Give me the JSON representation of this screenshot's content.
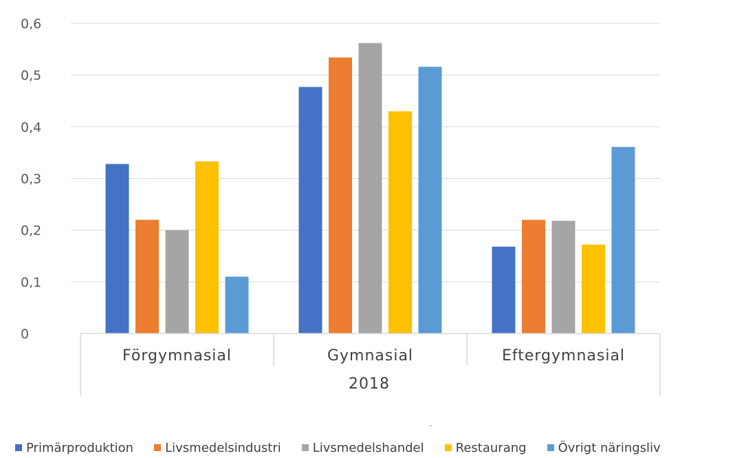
{
  "chart_data": {
    "type": "bar",
    "title": "",
    "xlabel": "2018",
    "ylabel": "",
    "ylim": [
      0,
      0.6
    ],
    "yticks": [
      "0",
      "0,1",
      "0,2",
      "0,3",
      "0,4",
      "0,5",
      "0,6"
    ],
    "grid": true,
    "legend_position": "bottom",
    "categories": [
      "Förgymnasial",
      "Gymnasial",
      "Eftergymnasial"
    ],
    "series": [
      {
        "name": "Primärproduktion",
        "color": "#4472C4",
        "values": [
          0.328,
          0.477,
          0.168
        ]
      },
      {
        "name": "Livsmedelsindustri",
        "color": "#ED7D31",
        "values": [
          0.22,
          0.534,
          0.22
        ]
      },
      {
        "name": "Livsmedelshandel",
        "color": "#A5A5A5",
        "values": [
          0.2,
          0.562,
          0.218
        ]
      },
      {
        "name": "Restaurang",
        "color": "#FFC000",
        "values": [
          0.333,
          0.43,
          0.172
        ]
      },
      {
        "name": "Övrigt näringsliv",
        "color": "#5B9BD5",
        "values": [
          0.11,
          0.516,
          0.361
        ]
      }
    ]
  }
}
